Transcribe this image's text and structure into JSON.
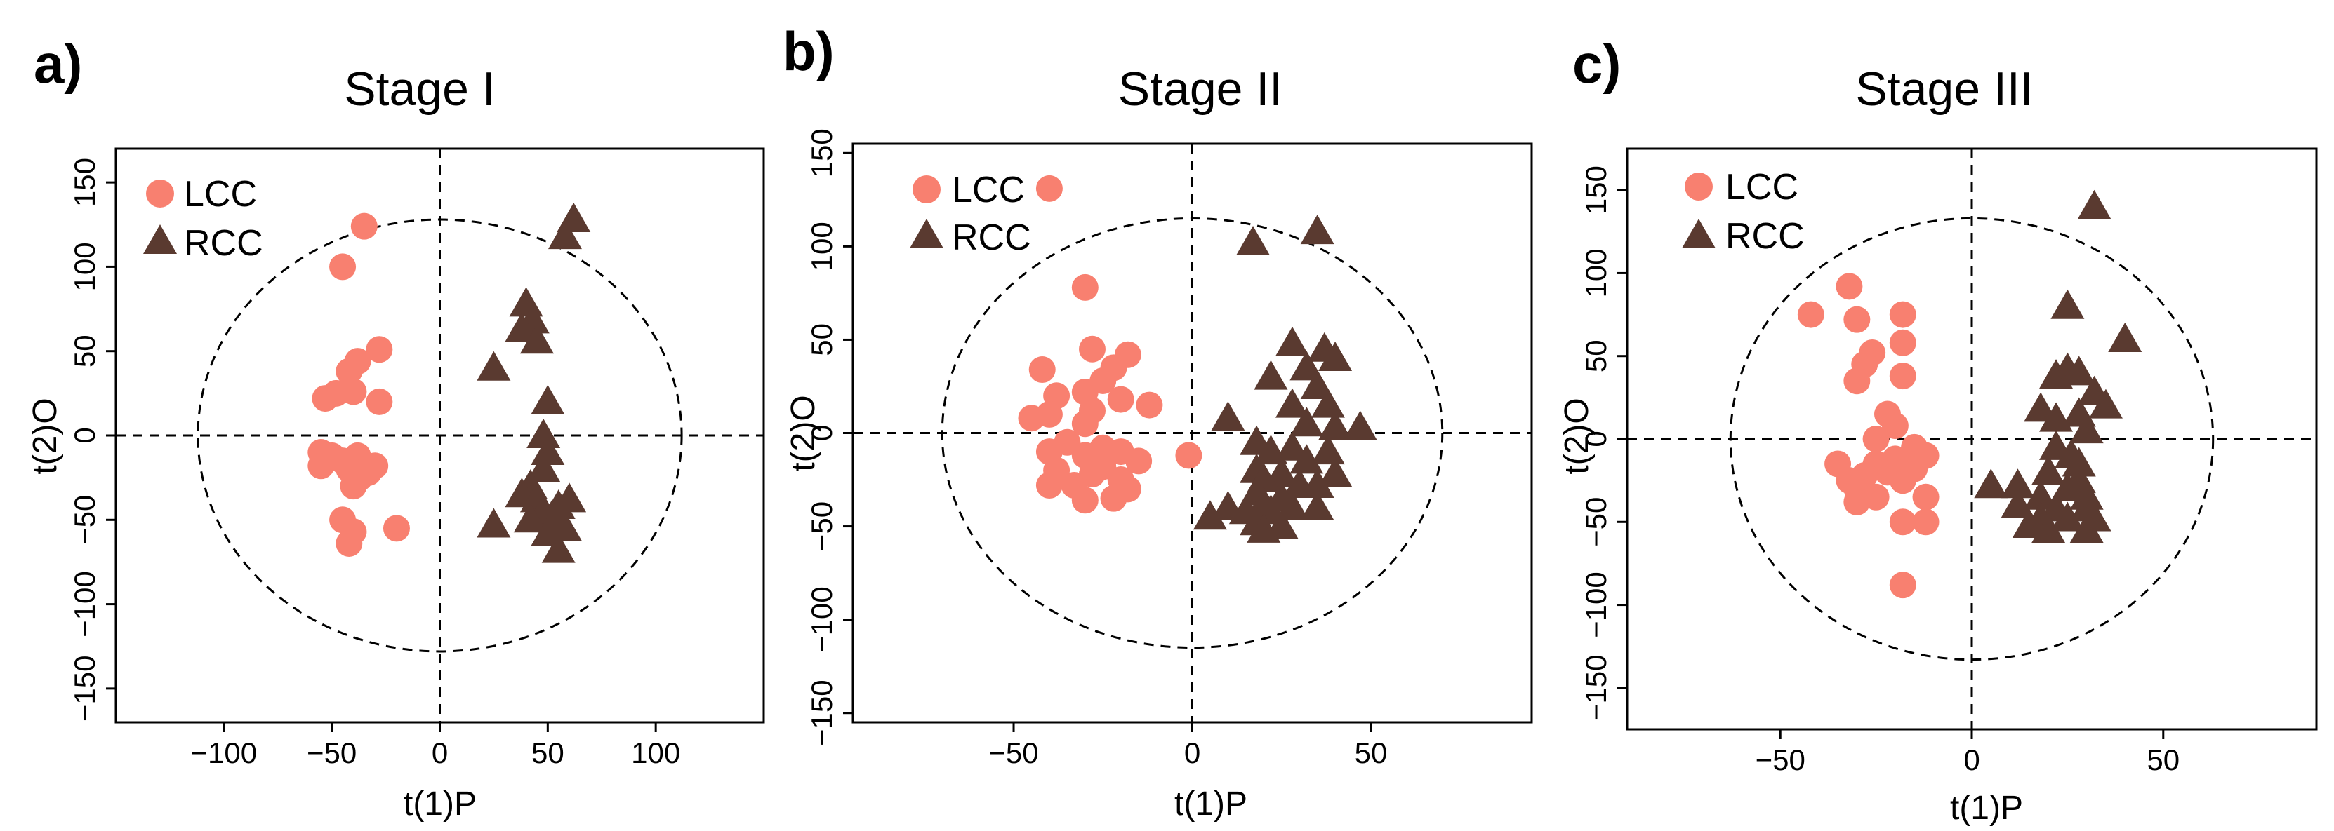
{
  "chart_data": [
    {
      "type": "scatter",
      "panel": "a)",
      "title": "Stage I",
      "xlabel": "t(1)P",
      "ylabel": "t(2)O",
      "xlim": [
        -150,
        150
      ],
      "ylim": [
        -170,
        170
      ],
      "xticks": [
        -100,
        -50,
        0,
        50,
        100
      ],
      "yticks": [
        -150,
        -100,
        -50,
        0,
        50,
        100,
        150
      ],
      "ellipse": {
        "rx": 112,
        "ry": 128
      },
      "legend": [
        "LCC",
        "RCC"
      ],
      "series": [
        {
          "name": "LCC",
          "color": "#F88070",
          "marker": "circle",
          "points": [
            [
              -35,
              124
            ],
            [
              -45,
              100
            ],
            [
              -28,
              51
            ],
            [
              -38,
              44
            ],
            [
              -42,
              38
            ],
            [
              -48,
              25
            ],
            [
              -40,
              26
            ],
            [
              -53,
              22
            ],
            [
              -28,
              20
            ],
            [
              -55,
              -10
            ],
            [
              -50,
              -12
            ],
            [
              -38,
              -12
            ],
            [
              -45,
              -15
            ],
            [
              -30,
              -18
            ],
            [
              -55,
              -18
            ],
            [
              -42,
              -20
            ],
            [
              -33,
              -22
            ],
            [
              -37,
              -25
            ],
            [
              -40,
              -30
            ],
            [
              -45,
              -50
            ],
            [
              -40,
              -57
            ],
            [
              -20,
              -55
            ],
            [
              -42,
              -64
            ]
          ]
        },
        {
          "name": "RCC",
          "color": "#5A3A30",
          "marker": "triangle",
          "points": [
            [
              62,
              128
            ],
            [
              58,
              118
            ],
            [
              40,
              78
            ],
            [
              43,
              68
            ],
            [
              38,
              63
            ],
            [
              45,
              56
            ],
            [
              25,
              40
            ],
            [
              50,
              20
            ],
            [
              48,
              0
            ],
            [
              50,
              -10
            ],
            [
              48,
              -20
            ],
            [
              42,
              -30
            ],
            [
              38,
              -35
            ],
            [
              45,
              -38
            ],
            [
              60,
              -38
            ],
            [
              55,
              -42
            ],
            [
              48,
              -45
            ],
            [
              52,
              -48
            ],
            [
              42,
              -50
            ],
            [
              25,
              -53
            ],
            [
              58,
              -55
            ],
            [
              50,
              -58
            ],
            [
              55,
              -68
            ]
          ]
        }
      ]
    },
    {
      "type": "scatter",
      "panel": "b)",
      "title": "Stage II",
      "xlabel": "t(1)P",
      "ylabel": "t(2)O",
      "xlim": [
        -95,
        95
      ],
      "ylim": [
        -155,
        155
      ],
      "xticks": [
        -50,
        0,
        50
      ],
      "yticks": [
        -150,
        -100,
        -50,
        0,
        50,
        100,
        150
      ],
      "ellipse": {
        "rx": 70,
        "ry": 115
      },
      "legend": [
        "LCC",
        "RCC"
      ],
      "series": [
        {
          "name": "LCC",
          "color": "#F88070",
          "marker": "circle",
          "points": [
            [
              -40,
              131
            ],
            [
              -30,
              78
            ],
            [
              -28,
              45
            ],
            [
              -18,
              42
            ],
            [
              -22,
              35
            ],
            [
              -42,
              34
            ],
            [
              -25,
              28
            ],
            [
              -30,
              22
            ],
            [
              -38,
              20
            ],
            [
              -20,
              18
            ],
            [
              -12,
              15
            ],
            [
              -28,
              12
            ],
            [
              -40,
              10
            ],
            [
              -45,
              8
            ],
            [
              -30,
              5
            ],
            [
              -35,
              -5
            ],
            [
              -25,
              -8
            ],
            [
              -20,
              -10
            ],
            [
              -40,
              -10
            ],
            [
              -30,
              -12
            ],
            [
              -1,
              -12
            ],
            [
              -15,
              -15
            ],
            [
              -25,
              -18
            ],
            [
              -38,
              -20
            ],
            [
              -28,
              -22
            ],
            [
              -20,
              -25
            ],
            [
              -33,
              -28
            ],
            [
              -40,
              -28
            ],
            [
              -18,
              -30
            ],
            [
              -22,
              -35
            ],
            [
              -30,
              -36
            ]
          ]
        },
        {
          "name": "RCC",
          "color": "#5A3A30",
          "marker": "triangle",
          "points": [
            [
              35,
              108
            ],
            [
              17,
              102
            ],
            [
              28,
              48
            ],
            [
              37,
              45
            ],
            [
              40,
              40
            ],
            [
              32,
              35
            ],
            [
              22,
              30
            ],
            [
              35,
              25
            ],
            [
              28,
              15
            ],
            [
              38,
              15
            ],
            [
              10,
              8
            ],
            [
              32,
              5
            ],
            [
              40,
              3
            ],
            [
              47,
              3
            ],
            [
              18,
              -5
            ],
            [
              28,
              -8
            ],
            [
              22,
              -10
            ],
            [
              38,
              -10
            ],
            [
              32,
              -15
            ],
            [
              18,
              -20
            ],
            [
              25,
              -22
            ],
            [
              40,
              -22
            ],
            [
              20,
              -25
            ],
            [
              30,
              -28
            ],
            [
              35,
              -28
            ],
            [
              18,
              -32
            ],
            [
              25,
              -35
            ],
            [
              20,
              -38
            ],
            [
              28,
              -40
            ],
            [
              35,
              -40
            ],
            [
              15,
              -42
            ],
            [
              22,
              -42
            ],
            [
              5,
              -45
            ],
            [
              10,
              -40
            ],
            [
              18,
              -48
            ],
            [
              25,
              -50
            ],
            [
              20,
              -52
            ]
          ]
        }
      ]
    },
    {
      "type": "scatter",
      "panel": "c)",
      "title": "Stage III",
      "xlabel": "t(1)P",
      "ylabel": "t(2)O",
      "xlim": [
        -90,
        90
      ],
      "ylim": [
        -175,
        175
      ],
      "xticks": [
        -50,
        0,
        50
      ],
      "yticks": [
        -150,
        -100,
        -50,
        0,
        50,
        100,
        150
      ],
      "ellipse": {
        "rx": 63,
        "ry": 133
      },
      "legend": [
        "LCC",
        "RCC"
      ],
      "series": [
        {
          "name": "LCC",
          "color": "#F88070",
          "marker": "circle",
          "points": [
            [
              -32,
              92
            ],
            [
              -42,
              75
            ],
            [
              -18,
              75
            ],
            [
              -30,
              72
            ],
            [
              -18,
              58
            ],
            [
              -26,
              52
            ],
            [
              -28,
              45
            ],
            [
              -18,
              38
            ],
            [
              -30,
              35
            ],
            [
              -22,
              15
            ],
            [
              -20,
              8
            ],
            [
              -25,
              0
            ],
            [
              -15,
              -5
            ],
            [
              -12,
              -10
            ],
            [
              -20,
              -12
            ],
            [
              -25,
              -15
            ],
            [
              -35,
              -15
            ],
            [
              -15,
              -18
            ],
            [
              -22,
              -20
            ],
            [
              -28,
              -22
            ],
            [
              -18,
              -25
            ],
            [
              -32,
              -25
            ],
            [
              -30,
              -30
            ],
            [
              -25,
              -35
            ],
            [
              -12,
              -35
            ],
            [
              -30,
              -38
            ],
            [
              -18,
              -50
            ],
            [
              -12,
              -50
            ],
            [
              -18,
              -88
            ]
          ]
        },
        {
          "name": "RCC",
          "color": "#5A3A30",
          "marker": "triangle",
          "points": [
            [
              32,
              140
            ],
            [
              25,
              80
            ],
            [
              40,
              60
            ],
            [
              25,
              42
            ],
            [
              28,
              40
            ],
            [
              22,
              38
            ],
            [
              32,
              28
            ],
            [
              35,
              20
            ],
            [
              18,
              18
            ],
            [
              28,
              15
            ],
            [
              22,
              12
            ],
            [
              30,
              5
            ],
            [
              22,
              -5
            ],
            [
              26,
              -10
            ],
            [
              28,
              -15
            ],
            [
              20,
              -20
            ],
            [
              28,
              -25
            ],
            [
              12,
              -28
            ],
            [
              5,
              -28
            ],
            [
              25,
              -30
            ],
            [
              18,
              -35
            ],
            [
              30,
              -35
            ],
            [
              12,
              -40
            ],
            [
              22,
              -42
            ],
            [
              30,
              -42
            ],
            [
              18,
              -48
            ],
            [
              25,
              -48
            ],
            [
              32,
              -48
            ],
            [
              15,
              -52
            ],
            [
              20,
              -55
            ],
            [
              30,
              -55
            ]
          ]
        }
      ]
    }
  ]
}
